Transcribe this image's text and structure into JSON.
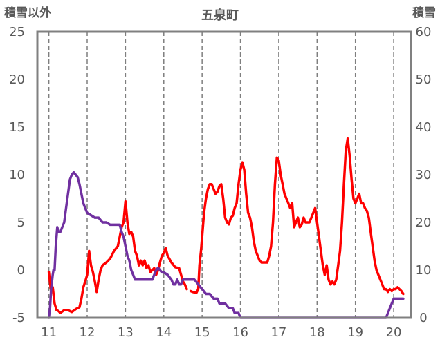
{
  "chart_data": {
    "type": "line",
    "title": "五泉町",
    "y_left_label": "積雪以外",
    "y_right_label": "積雪",
    "ylim_left": [
      -5,
      25
    ],
    "ylim_right": [
      0,
      60
    ],
    "xlim": [
      10.7,
      20.45
    ],
    "x_ticks": [
      11,
      12,
      13,
      14,
      15,
      16,
      17,
      18,
      19,
      20
    ],
    "y_left_ticks": [
      -5,
      0,
      5,
      10,
      15,
      20,
      25
    ],
    "y_right_ticks": [
      0,
      10,
      20,
      30,
      40,
      50,
      60
    ],
    "grid": "vertical-dashed",
    "colors": {
      "temperature": "#ff0000",
      "snow": "#7030a0",
      "frame": "#808080",
      "grid": "#7f7f7f"
    },
    "series": [
      {
        "axis": "left",
        "color": "#ff0000",
        "points": [
          [
            11.0,
            -0.2
          ],
          [
            11.05,
            -2.0
          ],
          [
            11.1,
            -1.8
          ],
          [
            11.15,
            -3.5
          ],
          [
            11.2,
            -4.2
          ],
          [
            11.25,
            -4.3
          ],
          [
            11.3,
            -4.5
          ],
          [
            11.4,
            -4.2
          ],
          [
            11.5,
            -4.2
          ],
          [
            11.6,
            -4.4
          ],
          [
            11.7,
            -4.1
          ],
          [
            11.8,
            -3.9
          ],
          [
            11.85,
            -3.0
          ],
          [
            11.9,
            -1.8
          ],
          [
            11.95,
            -1.2
          ],
          [
            12.0,
            -0.5
          ],
          [
            12.05,
            2.0
          ],
          [
            12.1,
            0.5
          ],
          [
            12.15,
            -0.2
          ],
          [
            12.2,
            -1.2
          ],
          [
            12.25,
            -2.3
          ],
          [
            12.3,
            -1.0
          ],
          [
            12.35,
            0.0
          ],
          [
            12.4,
            0.5
          ],
          [
            12.5,
            0.8
          ],
          [
            12.6,
            1.2
          ],
          [
            12.7,
            2.0
          ],
          [
            12.8,
            2.5
          ],
          [
            12.85,
            3.5
          ],
          [
            12.9,
            4.5
          ],
          [
            12.95,
            5.0
          ],
          [
            13.0,
            7.2
          ],
          [
            13.05,
            5.0
          ],
          [
            13.1,
            3.8
          ],
          [
            13.15,
            4.0
          ],
          [
            13.2,
            3.5
          ],
          [
            13.25,
            2.0
          ],
          [
            13.3,
            1.5
          ],
          [
            13.35,
            0.5
          ],
          [
            13.4,
            1.0
          ],
          [
            13.45,
            0.5
          ],
          [
            13.5,
            1.0
          ],
          [
            13.55,
            0.2
          ],
          [
            13.6,
            0.5
          ],
          [
            13.65,
            -0.2
          ],
          [
            13.7,
            0.0
          ],
          [
            13.75,
            0.2
          ],
          [
            13.8,
            -0.5
          ],
          [
            13.85,
            0.0
          ],
          [
            13.9,
            0.8
          ],
          [
            13.95,
            1.5
          ],
          [
            14.0,
            1.8
          ],
          [
            14.05,
            2.3
          ],
          [
            14.1,
            1.5
          ],
          [
            14.2,
            0.8
          ],
          [
            14.3,
            0.3
          ],
          [
            14.4,
            0.2
          ],
          [
            14.45,
            -0.5
          ],
          [
            14.5,
            -1.2
          ],
          [
            14.55,
            -1.5
          ],
          [
            14.6,
            -2.0
          ]
        ]
      },
      {
        "axis": "left",
        "color": "#ff0000",
        "points": [
          [
            14.7,
            -2.2
          ],
          [
            14.75,
            -2.3
          ],
          [
            14.85,
            -2.4
          ],
          [
            14.9,
            -2.0
          ],
          [
            14.93,
            0.5
          ],
          [
            14.97,
            2.0
          ],
          [
            15.0,
            3.5
          ],
          [
            15.05,
            6.0
          ],
          [
            15.1,
            7.5
          ],
          [
            15.15,
            8.5
          ],
          [
            15.2,
            9.0
          ],
          [
            15.25,
            9.0
          ],
          [
            15.3,
            8.5
          ],
          [
            15.35,
            8.0
          ],
          [
            15.4,
            8.2
          ],
          [
            15.45,
            8.8
          ],
          [
            15.5,
            9.0
          ],
          [
            15.55,
            7.5
          ],
          [
            15.6,
            5.5
          ],
          [
            15.65,
            5.0
          ],
          [
            15.7,
            4.8
          ],
          [
            15.75,
            5.5
          ],
          [
            15.8,
            5.7
          ],
          [
            15.85,
            6.5
          ],
          [
            15.9,
            7.0
          ],
          [
            15.95,
            9.0
          ],
          [
            16.0,
            10.5
          ],
          [
            16.05,
            11.3
          ],
          [
            16.1,
            10.5
          ],
          [
            16.15,
            8.0
          ],
          [
            16.2,
            6.0
          ],
          [
            16.25,
            5.5
          ],
          [
            16.3,
            4.5
          ],
          [
            16.35,
            3.0
          ],
          [
            16.4,
            2.0
          ],
          [
            16.45,
            1.5
          ],
          [
            16.5,
            1.0
          ],
          [
            16.55,
            0.8
          ],
          [
            16.6,
            0.8
          ],
          [
            16.7,
            0.8
          ],
          [
            16.75,
            1.5
          ],
          [
            16.8,
            2.5
          ],
          [
            16.85,
            5.0
          ],
          [
            16.9,
            9.0
          ],
          [
            16.95,
            11.8
          ],
          [
            17.0,
            11.5
          ],
          [
            17.05,
            10.0
          ],
          [
            17.1,
            9.0
          ],
          [
            17.15,
            8.0
          ],
          [
            17.2,
            7.5
          ],
          [
            17.25,
            7.0
          ],
          [
            17.3,
            6.5
          ],
          [
            17.35,
            7.0
          ],
          [
            17.4,
            4.5
          ],
          [
            17.45,
            5.0
          ],
          [
            17.5,
            5.5
          ],
          [
            17.55,
            4.5
          ],
          [
            17.6,
            4.8
          ],
          [
            17.65,
            5.5
          ],
          [
            17.7,
            5.0
          ],
          [
            17.75,
            5.0
          ],
          [
            17.8,
            5.0
          ],
          [
            17.85,
            5.5
          ],
          [
            17.9,
            6.0
          ],
          [
            17.95,
            6.5
          ],
          [
            18.0,
            5.0
          ],
          [
            18.05,
            3.5
          ],
          [
            18.1,
            2.0
          ],
          [
            18.15,
            0.5
          ],
          [
            18.2,
            -0.5
          ],
          [
            18.25,
            0.5
          ],
          [
            18.3,
            -1.0
          ],
          [
            18.35,
            -1.5
          ],
          [
            18.4,
            -1.2
          ],
          [
            18.45,
            -1.5
          ],
          [
            18.5,
            -1.0
          ],
          [
            18.55,
            0.5
          ],
          [
            18.6,
            2.0
          ],
          [
            18.65,
            5.0
          ],
          [
            18.7,
            9.0
          ],
          [
            18.75,
            12.5
          ],
          [
            18.8,
            13.8
          ],
          [
            18.85,
            12.0
          ],
          [
            18.9,
            9.5
          ],
          [
            18.95,
            7.5
          ],
          [
            19.0,
            7.0
          ],
          [
            19.05,
            7.5
          ],
          [
            19.1,
            8.0
          ],
          [
            19.15,
            7.0
          ],
          [
            19.2,
            7.0
          ],
          [
            19.25,
            6.5
          ],
          [
            19.3,
            6.2
          ],
          [
            19.35,
            5.5
          ],
          [
            19.4,
            4.0
          ],
          [
            19.45,
            2.5
          ],
          [
            19.5,
            1.0
          ],
          [
            19.55,
            0.0
          ],
          [
            19.6,
            -0.5
          ],
          [
            19.65,
            -1.0
          ],
          [
            19.7,
            -1.5
          ],
          [
            19.75,
            -2.0
          ],
          [
            19.8,
            -2.0
          ],
          [
            19.85,
            -2.3
          ],
          [
            19.9,
            -2.0
          ],
          [
            19.95,
            -2.2
          ],
          [
            20.0,
            -2.0
          ],
          [
            20.05,
            -2.0
          ],
          [
            20.1,
            -1.8
          ],
          [
            20.15,
            -2.0
          ],
          [
            20.2,
            -2.2
          ],
          [
            20.25,
            -2.5
          ]
        ]
      },
      {
        "axis": "right",
        "color": "#7030a0",
        "points": [
          [
            11.0,
            0
          ],
          [
            11.03,
            2
          ],
          [
            11.06,
            6
          ],
          [
            11.1,
            9
          ],
          [
            11.12,
            10
          ],
          [
            11.15,
            10
          ],
          [
            11.18,
            15
          ],
          [
            11.22,
            19
          ],
          [
            11.25,
            18
          ],
          [
            11.3,
            18
          ],
          [
            11.35,
            19
          ],
          [
            11.4,
            20
          ],
          [
            11.45,
            23
          ],
          [
            11.5,
            26
          ],
          [
            11.55,
            29
          ],
          [
            11.6,
            30
          ],
          [
            11.65,
            30.5
          ],
          [
            11.7,
            30
          ],
          [
            11.75,
            29.5
          ],
          [
            11.8,
            28
          ],
          [
            11.85,
            26
          ],
          [
            11.9,
            24
          ],
          [
            11.95,
            23
          ],
          [
            12.0,
            22
          ],
          [
            12.1,
            21.5
          ],
          [
            12.2,
            21
          ],
          [
            12.3,
            21
          ],
          [
            12.4,
            20
          ],
          [
            12.5,
            20
          ],
          [
            12.6,
            19.5
          ],
          [
            12.7,
            19.5
          ],
          [
            12.8,
            19.5
          ],
          [
            12.85,
            19.5
          ],
          [
            12.9,
            18
          ],
          [
            12.95,
            17
          ],
          [
            13.0,
            15
          ],
          [
            13.05,
            13
          ],
          [
            13.1,
            12
          ],
          [
            13.15,
            10
          ],
          [
            13.2,
            9
          ],
          [
            13.25,
            8
          ],
          [
            13.3,
            8
          ],
          [
            13.5,
            8
          ],
          [
            13.7,
            8
          ],
          [
            13.75,
            9
          ],
          [
            13.8,
            10
          ],
          [
            13.85,
            10.5
          ],
          [
            13.9,
            10
          ],
          [
            13.95,
            9.5
          ],
          [
            14.0,
            9.5
          ],
          [
            14.1,
            9
          ],
          [
            14.2,
            8
          ],
          [
            14.25,
            7
          ],
          [
            14.3,
            7
          ],
          [
            14.35,
            8
          ],
          [
            14.4,
            7
          ],
          [
            14.45,
            7
          ],
          [
            14.5,
            8
          ],
          [
            14.55,
            8
          ],
          [
            14.6,
            8
          ],
          [
            14.8,
            8
          ],
          [
            14.9,
            7
          ],
          [
            15.0,
            6
          ],
          [
            15.1,
            5
          ],
          [
            15.2,
            5
          ],
          [
            15.3,
            4
          ],
          [
            15.4,
            4
          ],
          [
            15.45,
            3
          ],
          [
            15.6,
            3
          ],
          [
            15.7,
            2
          ],
          [
            15.8,
            2
          ],
          [
            15.85,
            1
          ],
          [
            15.95,
            1
          ],
          [
            16.0,
            0
          ],
          [
            16.2,
            0
          ],
          [
            16.5,
            0
          ],
          [
            17.0,
            0
          ],
          [
            17.5,
            0
          ],
          [
            18.0,
            0
          ],
          [
            18.5,
            0
          ],
          [
            19.0,
            0
          ],
          [
            19.5,
            0
          ],
          [
            19.8,
            0
          ],
          [
            19.85,
            1
          ],
          [
            19.9,
            2
          ],
          [
            19.95,
            3
          ],
          [
            20.0,
            4
          ],
          [
            20.1,
            4
          ],
          [
            20.2,
            4
          ],
          [
            20.25,
            4
          ]
        ]
      }
    ]
  }
}
